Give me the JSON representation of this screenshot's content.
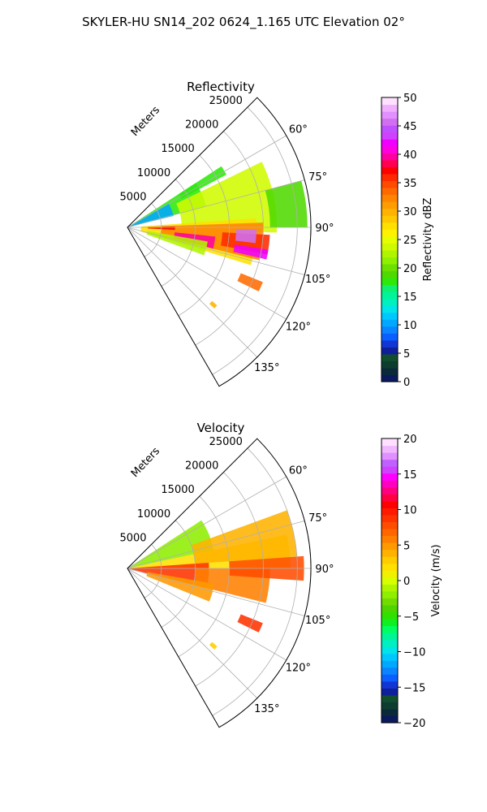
{
  "figure_title": "SKYLER-HU  SN14_202  0624_1.165 UTC Elevation 02°",
  "chart_data": [
    {
      "type": "heatmap",
      "subtype": "polar-sector",
      "title": "Reflectivity",
      "range_label": "Meters",
      "range_ticks": [
        5000,
        10000,
        15000,
        20000,
        25000
      ],
      "range_tick_labels": [
        "5000",
        "10000",
        "15000",
        "20000",
        "25000"
      ],
      "range_max": 27000,
      "azimuth_range": [
        45,
        150
      ],
      "azimuth_ticks": [
        60,
        75,
        90,
        105,
        120,
        135
      ],
      "azimuth_tick_labels": [
        "60°",
        "75°",
        "90°",
        "105°",
        "120°",
        "135°"
      ],
      "grid": true,
      "colorbar": {
        "label": "Reflectivity dBZ",
        "min": 0,
        "max": 50,
        "ticks": [
          0,
          5,
          10,
          15,
          20,
          25,
          30,
          35,
          40,
          45,
          50
        ],
        "tick_labels": [
          "0",
          "5",
          "10",
          "15",
          "20",
          "25",
          "30",
          "35",
          "40",
          "45",
          "50"
        ]
      },
      "echo_regions": [
        {
          "az": [
            57,
            75
          ],
          "range": [
            0,
            12000
          ],
          "value": 17
        },
        {
          "az": [
            60,
            76
          ],
          "range": [
            0,
            7000
          ],
          "value": 10
        },
        {
          "az": [
            57,
            62
          ],
          "range": [
            9000,
            16500
          ],
          "value": 18
        },
        {
          "az": [
            64,
            92
          ],
          "range": [
            8000,
            22000
          ],
          "value": 24
        },
        {
          "az": [
            75,
            90
          ],
          "range": [
            21000,
            26500
          ],
          "value": 19
        },
        {
          "az": [
            86,
            107
          ],
          "range": [
            2000,
            19000
          ],
          "value": 28
        },
        {
          "az": [
            88,
            104
          ],
          "range": [
            5000,
            20000
          ],
          "value": 33
        },
        {
          "az": [
            93,
            101
          ],
          "range": [
            14000,
            21000
          ],
          "value": 36
        },
        {
          "az": [
            91,
            97
          ],
          "range": [
            16000,
            19000
          ],
          "value": 46
        },
        {
          "az": [
            99,
            103
          ],
          "range": [
            16000,
            21000
          ],
          "value": 42
        },
        {
          "az": [
            96,
            104
          ],
          "range": [
            7000,
            13000
          ],
          "value": 40
        },
        {
          "az": [
            100,
            110
          ],
          "range": [
            3000,
            12000
          ],
          "value": 22
        },
        {
          "az": [
            89,
            93
          ],
          "range": [
            3000,
            7000
          ],
          "value": 38
        },
        {
          "az": [
            112,
            116
          ],
          "range": [
            18000,
            21500
          ],
          "value": 34
        },
        {
          "az": [
            131,
            133
          ],
          "range": [
            16500,
            17500
          ],
          "value": 30
        }
      ]
    },
    {
      "type": "heatmap",
      "subtype": "polar-sector",
      "title": "Velocity",
      "range_label": "Meters",
      "range_ticks": [
        5000,
        10000,
        15000,
        20000,
        25000
      ],
      "range_tick_labels": [
        "5000",
        "10000",
        "15000",
        "20000",
        "25000"
      ],
      "range_max": 27000,
      "azimuth_range": [
        45,
        150
      ],
      "azimuth_ticks": [
        60,
        75,
        90,
        105,
        120,
        135
      ],
      "azimuth_tick_labels": [
        "60°",
        "75°",
        "90°",
        "105°",
        "120°",
        "135°"
      ],
      "grid": true,
      "colorbar": {
        "label": "Velocity (m/s)",
        "min": -20,
        "max": 20,
        "ticks": [
          -20,
          -15,
          -10,
          -5,
          0,
          5,
          10,
          15,
          20
        ],
        "tick_labels": [
          "−20",
          "−15",
          "−10",
          "−5",
          "0",
          "5",
          "10",
          "15",
          "20"
        ]
      },
      "echo_regions": [
        {
          "az": [
            57,
            78
          ],
          "range": [
            0,
            13000
          ],
          "value": -2
        },
        {
          "az": [
            78,
            90
          ],
          "range": [
            0,
            24000
          ],
          "value": 2
        },
        {
          "az": [
            70,
            86
          ],
          "range": [
            10000,
            25000
          ],
          "value": 4
        },
        {
          "az": [
            86,
            104
          ],
          "range": [
            0,
            12000
          ],
          "value": 9
        },
        {
          "az": [
            90,
            104
          ],
          "range": [
            10000,
            21000
          ],
          "value": 6
        },
        {
          "az": [
            86,
            94
          ],
          "range": [
            15000,
            26000
          ],
          "value": 8
        },
        {
          "az": [
            100,
            112
          ],
          "range": [
            3000,
            13000
          ],
          "value": 5
        },
        {
          "az": [
            112,
            116
          ],
          "range": [
            18000,
            21500
          ],
          "value": 9
        },
        {
          "az": [
            131,
            133
          ],
          "range": [
            16500,
            17500
          ],
          "value": 3
        }
      ]
    }
  ]
}
